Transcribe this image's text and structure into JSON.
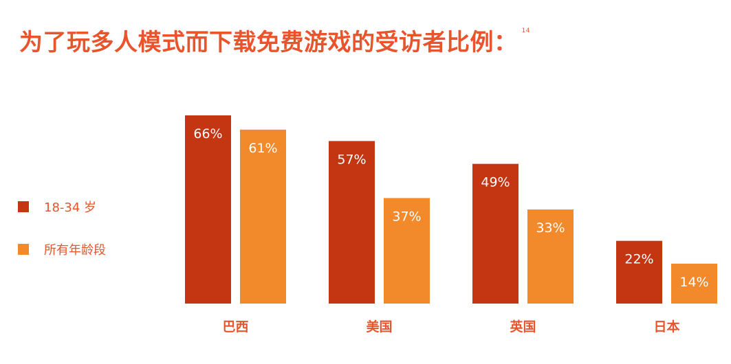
{
  "title": "为了玩多人模式而下载免费游戏的受访者比例：",
  "footnote": "14",
  "colors": {
    "title": "#e8542c",
    "series1": "#c43512",
    "series2": "#f28a2c"
  },
  "chart_data": {
    "type": "bar",
    "title": "为了玩多人模式而下载免费游戏的受访者比例：",
    "categories": [
      "巴西",
      "美国",
      "英国",
      "日本"
    ],
    "series": [
      {
        "name": "18-34 岁",
        "values": [
          66,
          57,
          49,
          22
        ],
        "labels": [
          "66%",
          "57%",
          "49%",
          "22%"
        ]
      },
      {
        "name": "所有年龄段",
        "values": [
          61,
          37,
          33,
          14
        ],
        "labels": [
          "61%",
          "37%",
          "33%",
          "14%"
        ]
      }
    ],
    "unit": "%",
    "xlabel": "",
    "ylabel": "",
    "grid": false,
    "legend_position": "left"
  }
}
